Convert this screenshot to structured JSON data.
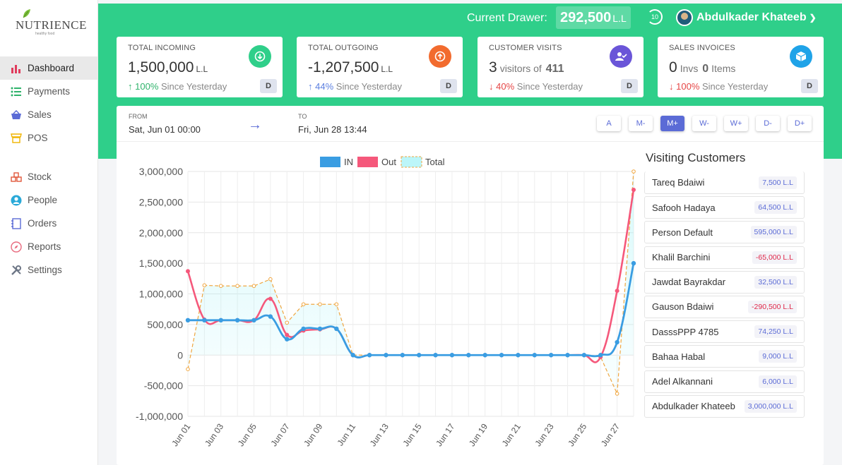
{
  "brand": {
    "name": "NUTRIENCE",
    "tagline": "healthy food"
  },
  "header": {
    "drawer_label": "Current Drawer:",
    "drawer_value": "292,500",
    "drawer_unit": "L.L",
    "timer": "10",
    "user_name": "Abdulkader Khateeb"
  },
  "nav": {
    "dashboard": "Dashboard",
    "payments": "Payments",
    "sales": "Sales",
    "pos": "POS",
    "stock": "Stock",
    "people": "People",
    "orders": "Orders",
    "reports": "Reports",
    "settings": "Settings"
  },
  "cards": {
    "incoming": {
      "title": "TOTAL INCOMING",
      "value": "1,500,000",
      "unit": "L.L",
      "pct": "100%",
      "since": "Since Yesterday",
      "d": "D"
    },
    "outgoing": {
      "title": "TOTAL OUTGOING",
      "value": "-1,207,500",
      "unit": "L.L",
      "pct": "44%",
      "since": "Since Yesterday",
      "d": "D"
    },
    "visits": {
      "title": "CUSTOMER VISITS",
      "count": "3",
      "word": "visitors of",
      "total": "411",
      "pct": "40%",
      "since": "Since Yesterday",
      "d": "D"
    },
    "invoices": {
      "title": "SALES INVOICES",
      "count": "0",
      "word1": "Invs",
      "items": "0",
      "word2": "Items",
      "pct": "100%",
      "since": "Since Yesterday",
      "d": "D"
    }
  },
  "dates": {
    "from_label": "FROM",
    "from": "Sat, Jun 01 00:00",
    "to_label": "TO",
    "to": "Fri, Jun 28 13:44"
  },
  "range_buttons": [
    "A",
    "M-",
    "M+",
    "W-",
    "W+",
    "D-",
    "D+"
  ],
  "customers_title": "Visiting Customers",
  "customers": [
    {
      "name": "Tareq Bdaiwi",
      "amount": "7,500 L.L",
      "neg": false
    },
    {
      "name": "Safooh Hadaya",
      "amount": "64,500 L.L",
      "neg": false
    },
    {
      "name": "Person Default",
      "amount": "595,000 L.L",
      "neg": false
    },
    {
      "name": "Khalil Barchini",
      "amount": "-65,000 L.L",
      "neg": true
    },
    {
      "name": "Jawdat Bayrakdar",
      "amount": "32,500 L.L",
      "neg": false
    },
    {
      "name": "Gauson Bdaiwi",
      "amount": "-290,500 L.L",
      "neg": true
    },
    {
      "name": "DasssPPP 4785",
      "amount": "74,250 L.L",
      "neg": false
    },
    {
      "name": "Bahaa Habal",
      "amount": "9,000 L.L",
      "neg": false
    },
    {
      "name": "Adel Alkannani",
      "amount": "6,000 L.L",
      "neg": false
    },
    {
      "name": "Abdulkader Khateeb",
      "amount": "3,000,000 L.L",
      "neg": false
    }
  ],
  "colors": {
    "green": "#2fcf8a",
    "in": "#3a9de2",
    "out": "#f5587b",
    "total": "#f0a640",
    "total_fill": "#8ff0f5",
    "accent": "#5b6bd6"
  },
  "chart_data": {
    "type": "line",
    "ylim": [
      -1000000,
      3000000
    ],
    "yticks": [
      3000000,
      2500000,
      2000000,
      1500000,
      1000000,
      500000,
      0,
      -500000,
      -1000000
    ],
    "ytick_labels": [
      "3,000,000",
      "2,500,000",
      "2,000,000",
      "1,500,000",
      "1,000,000",
      "500,000",
      "0",
      "-500,000",
      "-1,000,000"
    ],
    "x": [
      "Jun 01",
      "Jun 02",
      "Jun 03",
      "Jun 04",
      "Jun 05",
      "Jun 06",
      "Jun 07",
      "Jun 08",
      "Jun 09",
      "Jun 10",
      "Jun 11",
      "Jun 12",
      "Jun 13",
      "Jun 14",
      "Jun 15",
      "Jun 16",
      "Jun 17",
      "Jun 18",
      "Jun 19",
      "Jun 20",
      "Jun 21",
      "Jun 22",
      "Jun 23",
      "Jun 24",
      "Jun 25",
      "Jun 26",
      "Jun 27",
      "Jun 28"
    ],
    "xtick_labels": [
      "Jun 01",
      "Jun 03",
      "Jun 05",
      "Jun 07",
      "Jun 09",
      "Jun 11",
      "Jun 13",
      "Jun 15",
      "Jun 17",
      "Jun 19",
      "Jun 21",
      "Jun 23",
      "Jun 25",
      "Jun 27"
    ],
    "legend": [
      "IN",
      "Out",
      "Total"
    ],
    "legend_position": "top",
    "grid": true,
    "series": [
      {
        "name": "IN",
        "values": [
          570000,
          570000,
          570000,
          570000,
          570000,
          630000,
          260000,
          430000,
          430000,
          430000,
          0,
          0,
          0,
          0,
          0,
          0,
          0,
          0,
          0,
          0,
          0,
          0,
          0,
          0,
          0,
          0,
          210000,
          1500000
        ]
      },
      {
        "name": "Out",
        "values": [
          1370000,
          580000,
          570000,
          570000,
          570000,
          920000,
          330000,
          400000,
          420000,
          430000,
          0,
          0,
          0,
          0,
          0,
          0,
          0,
          0,
          0,
          0,
          0,
          0,
          0,
          0,
          0,
          -30000,
          1050000,
          2700000
        ]
      },
      {
        "name": "Total",
        "values": [
          -230000,
          1140000,
          1130000,
          1130000,
          1130000,
          1240000,
          530000,
          830000,
          830000,
          830000,
          0,
          0,
          0,
          0,
          0,
          0,
          0,
          0,
          0,
          0,
          0,
          0,
          0,
          0,
          0,
          -30000,
          -630000,
          3000000
        ]
      }
    ]
  }
}
